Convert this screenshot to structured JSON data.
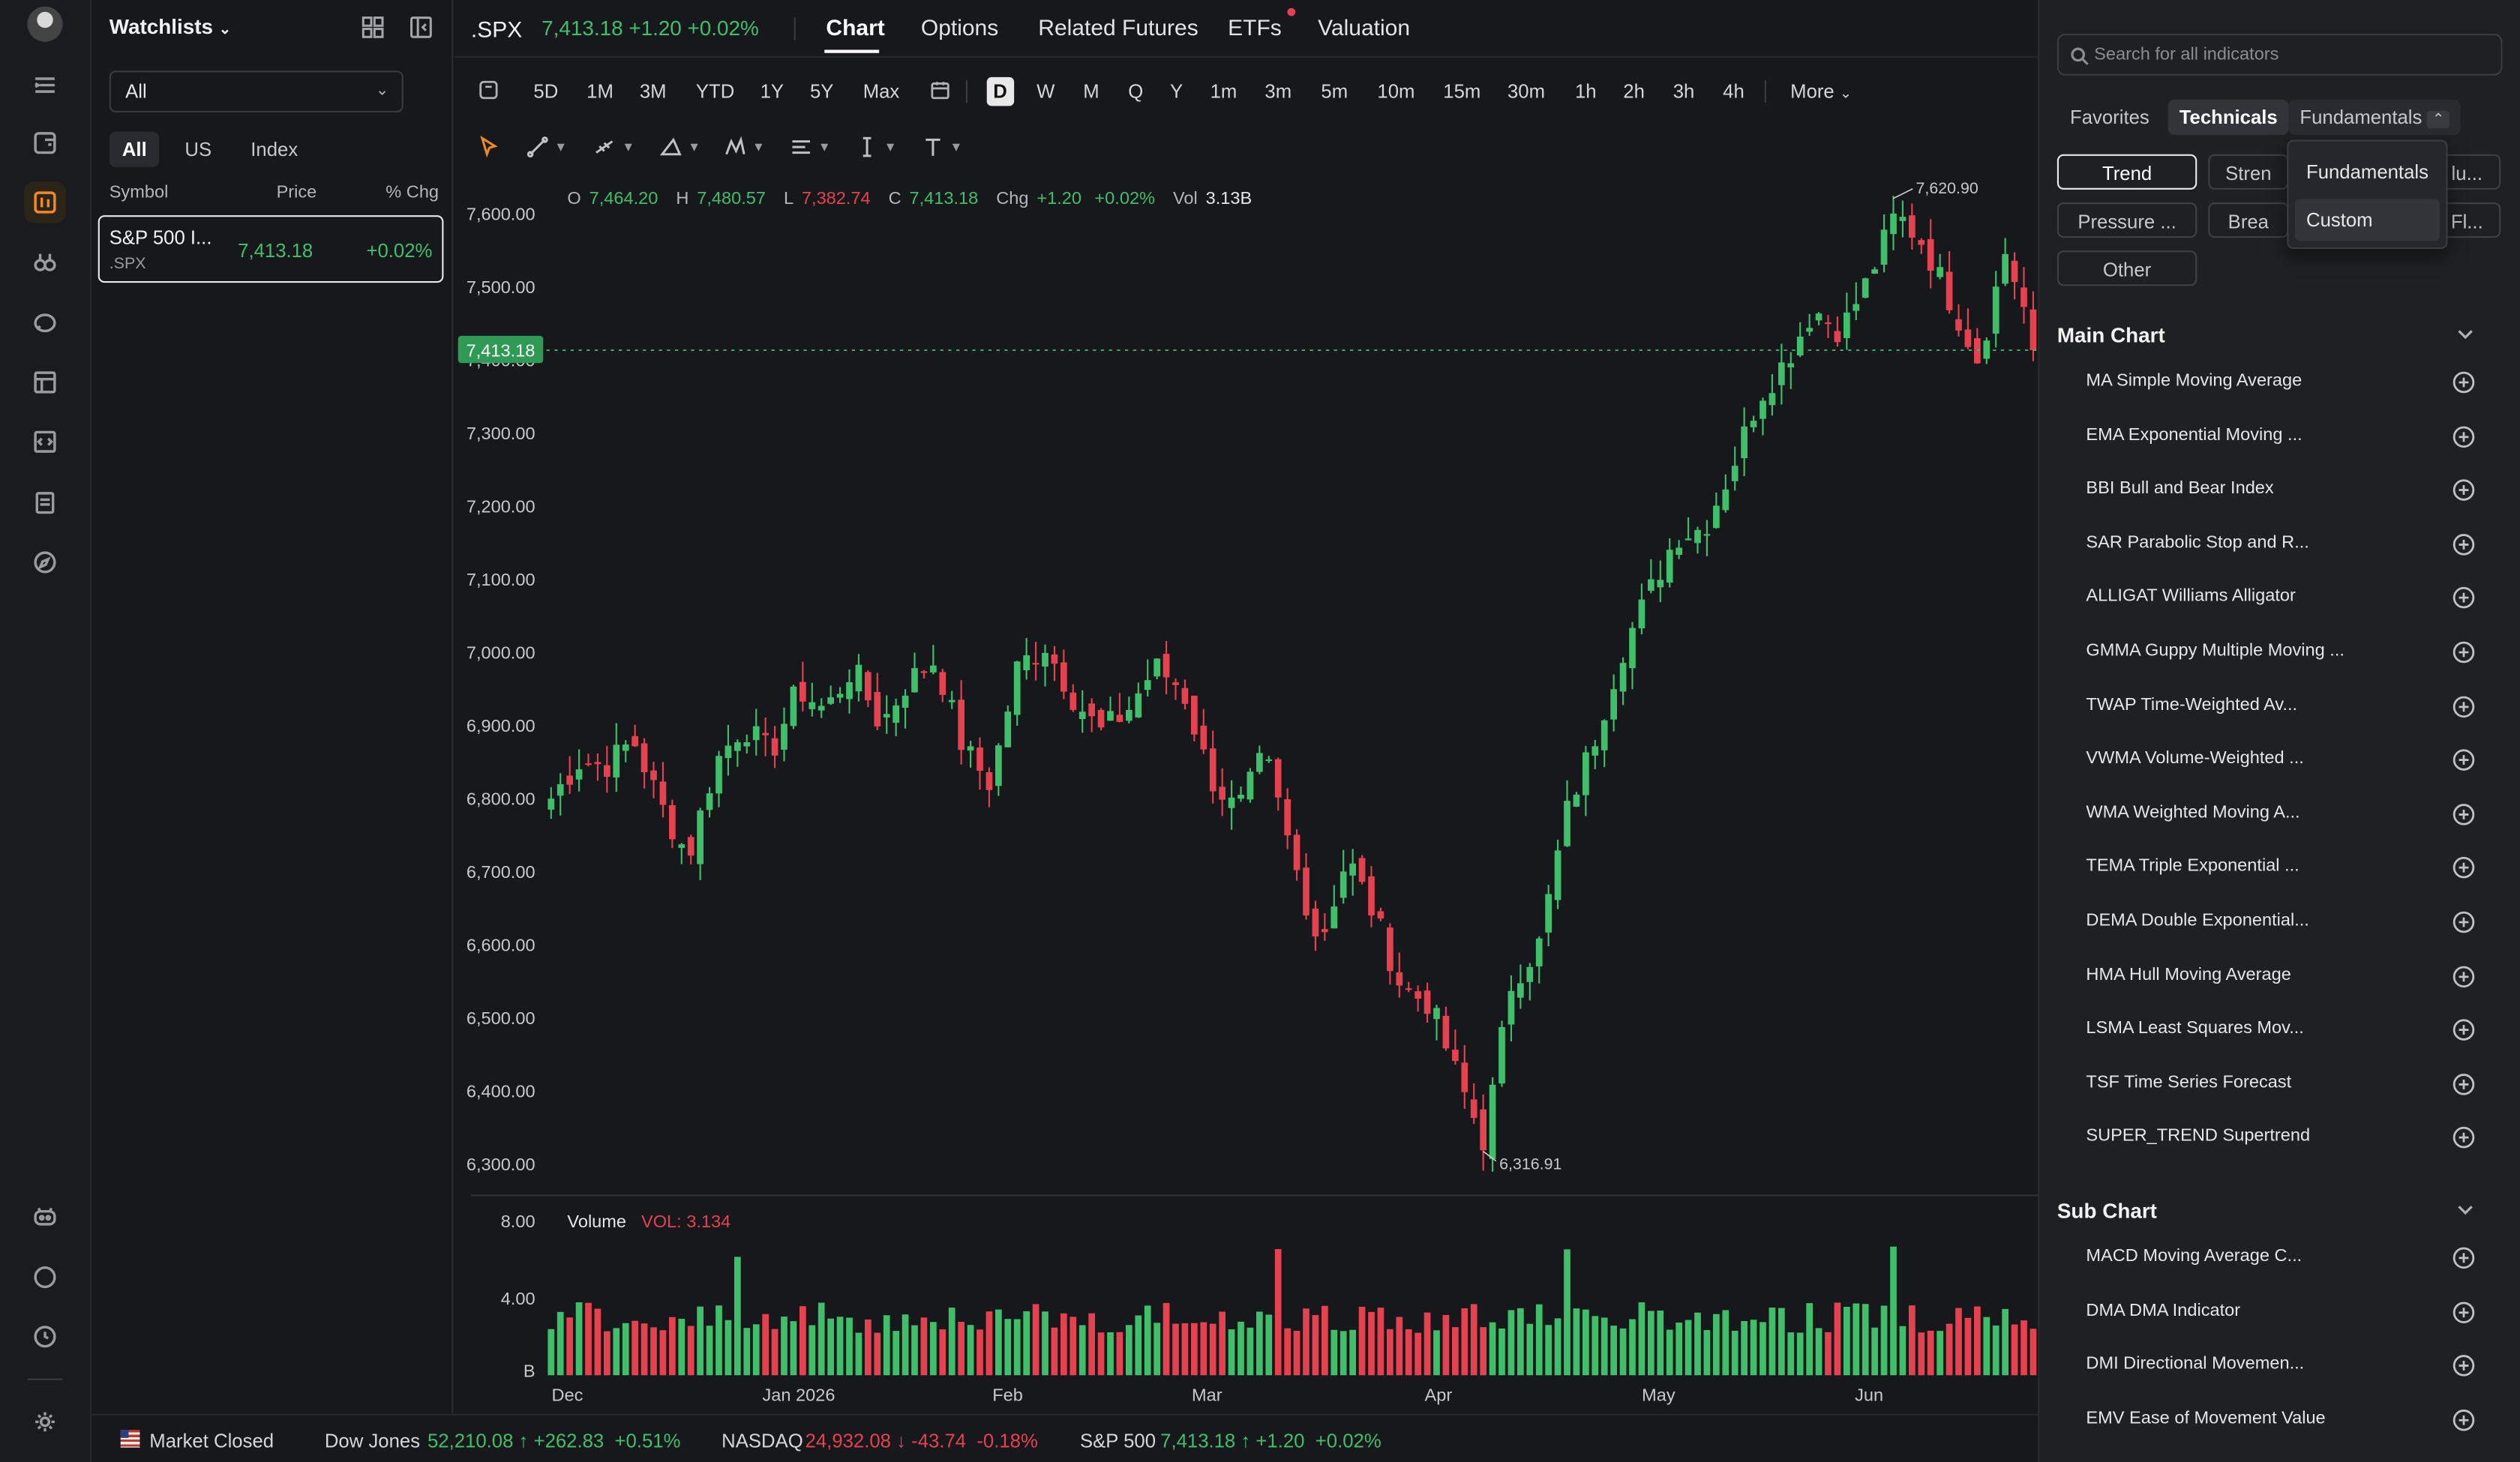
{
  "rail": {
    "items": [
      "watchlist-toggle-icon",
      "portfolio-icon",
      "chart-icon",
      "screener-icon",
      "news-icon",
      "layout-icon",
      "code-icon",
      "notes-icon",
      "discover-icon",
      "bot-icon",
      "chat-icon",
      "history-icon",
      "settings-icon"
    ]
  },
  "watchlist": {
    "title": "Watchlists",
    "select_value": "All",
    "tabs": [
      "All",
      "US",
      "Index"
    ],
    "columns": [
      "Symbol",
      "Price",
      "% Chg"
    ],
    "rows": [
      {
        "name": "S&P 500 I...",
        "symbol": ".SPX",
        "price": "7,413.18",
        "change": "+0.02%"
      }
    ]
  },
  "header": {
    "symbol": ".SPX",
    "quote": "7,413.18 +1.20 +0.02%",
    "tabs": [
      "Chart",
      "Options",
      "Related Futures",
      "ETFs",
      "Valuation"
    ]
  },
  "periods": {
    "ranges": [
      "5D",
      "1M",
      "3M",
      "YTD",
      "1Y",
      "5Y",
      "Max"
    ],
    "intervals": [
      "D",
      "W",
      "M",
      "Q",
      "Y",
      "1m",
      "3m",
      "5m",
      "10m",
      "15m",
      "30m",
      "1h",
      "2h",
      "3h",
      "4h"
    ],
    "more": "More"
  },
  "ohlc": {
    "o_label": "O",
    "o": "7,464.20",
    "h_label": "H",
    "h": "7,480.57",
    "l_label": "L",
    "l": "7,382.74",
    "c_label": "C",
    "c": "7,413.18",
    "chg_label": "Chg",
    "chg": "+1.20",
    "chg_pct": "+0.02%",
    "vol_label": "Vol",
    "vol": "3.13B"
  },
  "chart_data": {
    "type": "candlestick",
    "y_ticks": [
      "7,600.00",
      "7,500.00",
      "7,400.00",
      "7,300.00",
      "7,200.00",
      "7,100.00",
      "7,000.00",
      "6,900.00",
      "6,800.00",
      "6,700.00",
      "6,600.00",
      "6,500.00",
      "6,400.00",
      "6,300.00"
    ],
    "ylim": [
      6270,
      7655
    ],
    "x_ticks": [
      "Dec",
      "Jan 2026",
      "Feb",
      "Mar",
      "Apr",
      "May",
      "Jun"
    ],
    "last_price_label": "7,413.18",
    "high_annotation": "7,620.90",
    "low_annotation": "6,316.91",
    "close_anchors": [
      6800,
      6850,
      6845,
      6880,
      6790,
      6720,
      6850,
      6900,
      6860,
      6950,
      6920,
      6980,
      6900,
      6960,
      6990,
      6870,
      6820,
      6980,
      7010,
      6940,
      6890,
      6920,
      6980,
      6950,
      6830,
      6780,
      6860,
      6720,
      6600,
      6720,
      6640,
      6540,
      6520,
      6420,
      6330,
      6550,
      6600,
      6780,
      6880,
      7000,
      7080,
      7160,
      7170,
      7250,
      7350,
      7400,
      7470,
      7440,
      7510,
      7600,
      7560,
      7480,
      7400,
      7550,
      7430
    ],
    "volume": {
      "label": "Volume",
      "vol_text": "VOL: 3.134",
      "y_ticks": [
        "8.00",
        "4.00",
        "B"
      ],
      "ylim": [
        0,
        9
      ]
    }
  },
  "status_bar": {
    "market": "Market Closed",
    "indices": [
      {
        "name": "Dow Jones",
        "value": "52,210.08",
        "change": "+262.83",
        "pct": "+0.51%",
        "dir": "up"
      },
      {
        "name": "NASDAQ",
        "value": "24,932.08",
        "change": "-43.74",
        "pct": "-0.18%",
        "dir": "down"
      },
      {
        "name": "S&P 500",
        "value": "7,413.18",
        "change": "+1.20",
        "pct": "+0.02%",
        "dir": "up"
      }
    ]
  },
  "indicators": {
    "search_placeholder": "Search for all indicators",
    "tabs": [
      "Favorites",
      "Technicals",
      "Fundamentals"
    ],
    "chips": [
      "Trend",
      "Stren",
      "lu...",
      "Pressure ...",
      "Brea",
      "Fl...",
      "Other"
    ],
    "dropdown": [
      "Fundamentals",
      "Custom"
    ],
    "main_chart_title": "Main Chart",
    "main_chart": [
      "MA  Simple Moving Average",
      "EMA  Exponential Moving ...",
      "BBI  Bull and Bear Index",
      "SAR  Parabolic Stop and R...",
      "ALLIGAT  Williams Alligator",
      "GMMA  Guppy Multiple Moving ...",
      "TWAP  Time-Weighted Av...",
      "VWMA  Volume-Weighted ...",
      "WMA  Weighted Moving A...",
      "TEMA  Triple Exponential ...",
      "DEMA  Double Exponential...",
      "HMA  Hull Moving Average",
      "LSMA  Least Squares Mov...",
      "TSF  Time Series Forecast",
      "SUPER_TREND  Supertrend"
    ],
    "sub_chart_title": "Sub Chart",
    "sub_chart": [
      "MACD  Moving Average C...",
      "DMA  DMA Indicator",
      "DMI  Directional Movemen...",
      "EMV  Ease of Movement Value"
    ]
  },
  "colors": {
    "up": "#3fbf6a",
    "down": "#e5414f",
    "accent": "#f08a24"
  }
}
